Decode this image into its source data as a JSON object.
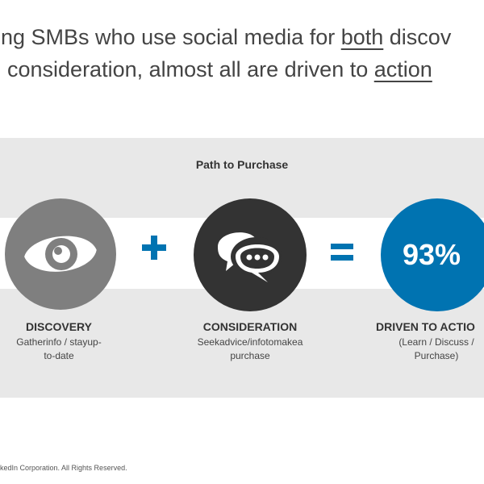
{
  "title": {
    "line1_pre": "ong SMBs who use social media for ",
    "line1_u": "both",
    "line1_post": " discov",
    "line2_pre": "consideration, almost all are driven to ",
    "line2_u": "action"
  },
  "panel": {
    "heading": "Path to Purchase"
  },
  "steps": {
    "discovery": {
      "label": "DISCOVERY",
      "line1": "Gatherinfo / stayup-",
      "line2": "to-date",
      "icon": "eye-icon"
    },
    "consideration": {
      "label": "CONSIDERATION",
      "line1": "Seekadvice/infotomakea",
      "line2": "purchase",
      "icon": "chat-bubbles-icon"
    },
    "action": {
      "label": "DRIVEN TO ACTIO",
      "value": "93%",
      "line1": "(Learn / Discuss /",
      "line2": "Purchase)"
    }
  },
  "operators": {
    "plus": "plus-icon",
    "equals": "equals-icon"
  },
  "colors": {
    "accent": "#0073b1",
    "gray_circle": "#7f7f7f",
    "dark_circle": "#333333",
    "panel_bg": "#e8e8e8"
  },
  "footer": "kedIn Corporation. All Rights Reserved."
}
